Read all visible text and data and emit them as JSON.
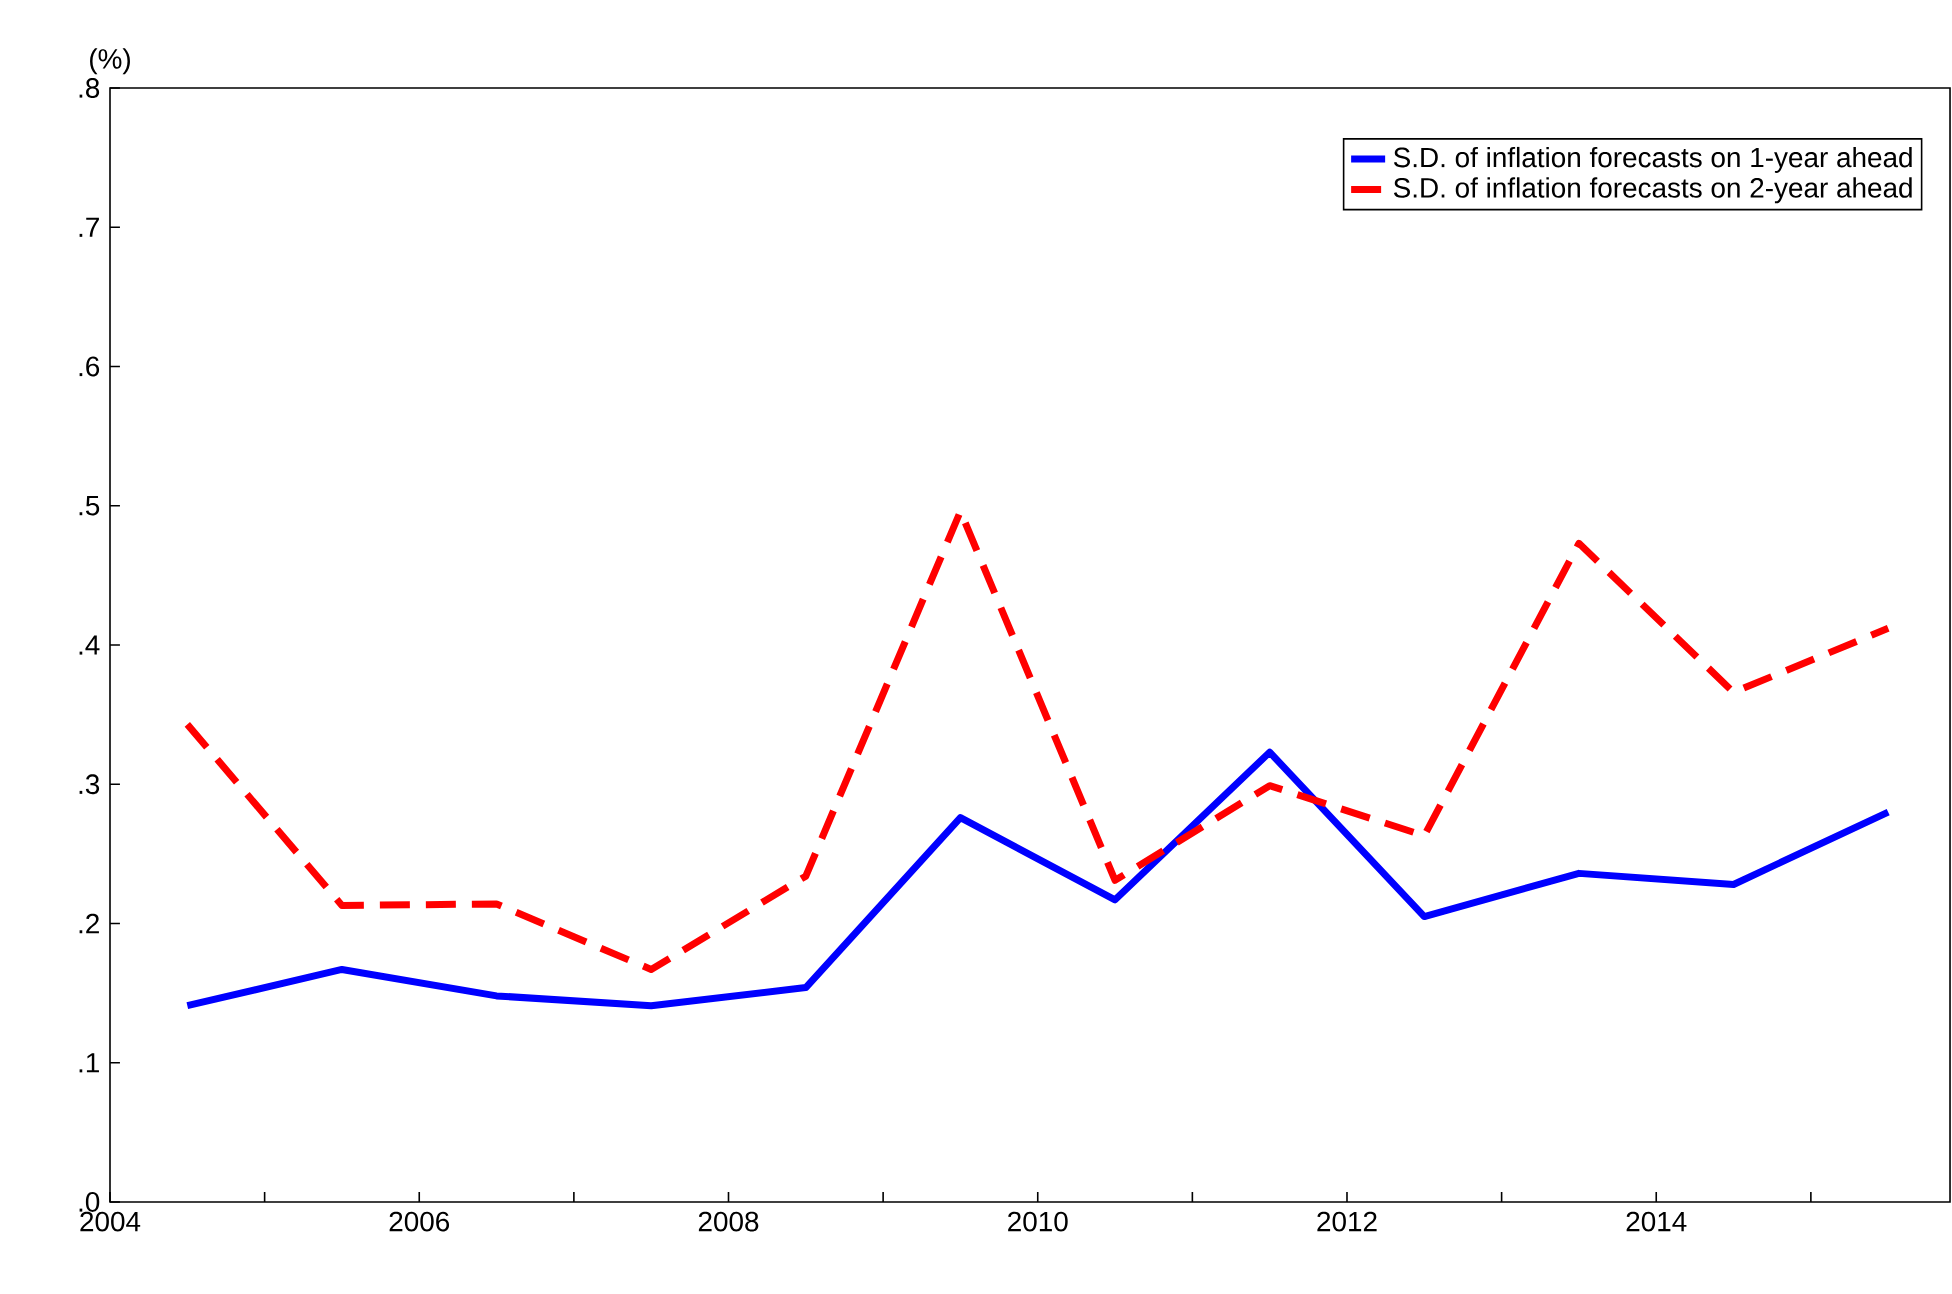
{
  "chart_data": {
    "type": "line",
    "ylabel": "(%)",
    "x": [
      2004.5,
      2005.5,
      2006.5,
      2007.5,
      2008.5,
      2009.5,
      2010.5,
      2011.5,
      2012.5,
      2013.5,
      2014.5,
      2015.5
    ],
    "series": [
      {
        "name": "S.D. of inflation forecasts on 1-year ahead",
        "color": "#0000ff",
        "line_style": "solid",
        "values": [
          0.141,
          0.167,
          0.148,
          0.141,
          0.154,
          0.276,
          0.217,
          0.323,
          0.205,
          0.236,
          0.228,
          0.28
        ]
      },
      {
        "name": "S.D. of inflation forecasts on 2-year ahead",
        "color": "#ff0000",
        "line_style": "dashed",
        "values": [
          0.343,
          0.213,
          0.214,
          0.167,
          0.234,
          0.496,
          0.231,
          0.299,
          0.263,
          0.473,
          0.366,
          0.412
        ]
      }
    ],
    "xlim": [
      2004,
      2015.9
    ],
    "xticks": [
      2004,
      {
        "value": 2005,
        "label": null
      },
      2006,
      {
        "value": 2007,
        "label": null
      },
      2008,
      {
        "value": 2009,
        "label": null
      },
      2010,
      {
        "value": 2011,
        "label": null
      },
      2012,
      {
        "value": 2013,
        "label": null
      },
      2014,
      {
        "value": 2015,
        "label": null
      }
    ],
    "ylim": [
      0,
      0.8
    ],
    "yticks": [
      {
        "value": 0,
        "label": ".0"
      },
      {
        "value": 0.1,
        "label": ".1"
      },
      {
        "value": 0.2,
        "label": ".2"
      },
      {
        "value": 0.3,
        "label": ".3"
      },
      {
        "value": 0.4,
        "label": ".4"
      },
      {
        "value": 0.5,
        "label": ".5"
      },
      {
        "value": 0.6,
        "label": ".6"
      },
      {
        "value": 0.7,
        "label": ".7"
      },
      {
        "value": 0.8,
        "label": ".8"
      }
    ],
    "grid": false,
    "legend": "top right",
    "marker": "none"
  }
}
